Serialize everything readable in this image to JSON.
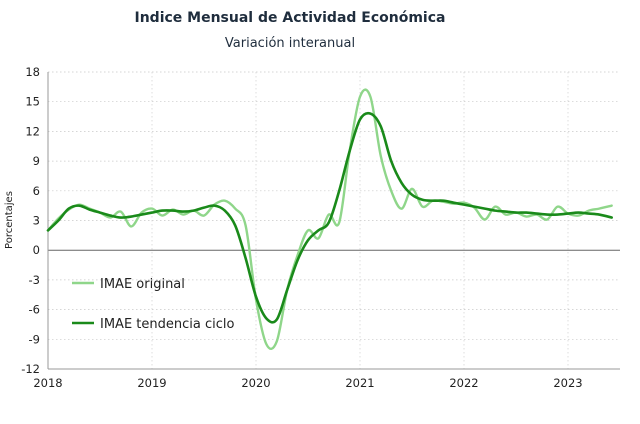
{
  "chart_data": {
    "type": "line",
    "title": "Indice Mensual de  Actividad Económica",
    "subtitle": "Variación interanual",
    "ylabel": "Porcentajes",
    "xlabel": "",
    "ylim": [
      -12,
      18
    ],
    "yticks": [
      18,
      15,
      12,
      9,
      6,
      3,
      0,
      -3,
      -6,
      -9,
      -12
    ],
    "xlim": [
      2018,
      2023.5
    ],
    "xticks": [
      2018,
      2019,
      2020,
      2021,
      2022,
      2023
    ],
    "grid": true,
    "legend": "bottom-left",
    "series": [
      {
        "name": "IMAE original",
        "color": "#8fd68a",
        "x": [
          2018.0,
          2018.1,
          2018.2,
          2018.3,
          2018.4,
          2018.5,
          2018.6,
          2018.7,
          2018.8,
          2018.9,
          2019.0,
          2019.1,
          2019.2,
          2019.3,
          2019.4,
          2019.5,
          2019.6,
          2019.7,
          2019.8,
          2019.9,
          2020.0,
          2020.1,
          2020.2,
          2020.3,
          2020.4,
          2020.5,
          2020.6,
          2020.7,
          2020.8,
          2020.9,
          2021.0,
          2021.1,
          2021.2,
          2021.3,
          2021.4,
          2021.5,
          2021.6,
          2021.7,
          2021.8,
          2021.9,
          2022.0,
          2022.1,
          2022.2,
          2022.3,
          2022.4,
          2022.5,
          2022.6,
          2022.7,
          2022.8,
          2022.9,
          2023.0,
          2023.1,
          2023.2,
          2023.3,
          2023.42
        ],
        "values": [
          2.0,
          3.2,
          4.1,
          4.6,
          4.2,
          3.8,
          3.3,
          3.9,
          2.4,
          3.8,
          4.2,
          3.5,
          4.1,
          3.6,
          4.0,
          3.5,
          4.6,
          5.0,
          4.2,
          2.5,
          -5.0,
          -9.5,
          -9.2,
          -4.0,
          -0.5,
          2.0,
          1.2,
          3.6,
          2.8,
          10.0,
          15.5,
          15.5,
          9.5,
          6.0,
          4.2,
          6.2,
          4.4,
          5.0,
          4.9,
          4.7,
          4.8,
          4.3,
          3.1,
          4.4,
          3.6,
          3.8,
          3.4,
          3.6,
          3.1,
          4.4,
          3.7,
          3.5,
          4.0,
          4.2,
          4.5
        ]
      },
      {
        "name": "IMAE tendencia ciclo",
        "color": "#1a8a1a",
        "x": [
          2018.0,
          2018.1,
          2018.2,
          2018.3,
          2018.4,
          2018.5,
          2018.6,
          2018.7,
          2018.8,
          2018.9,
          2019.0,
          2019.1,
          2019.2,
          2019.3,
          2019.4,
          2019.5,
          2019.6,
          2019.7,
          2019.8,
          2019.9,
          2020.0,
          2020.1,
          2020.2,
          2020.3,
          2020.4,
          2020.5,
          2020.6,
          2020.7,
          2020.8,
          2020.9,
          2021.0,
          2021.1,
          2021.2,
          2021.3,
          2021.4,
          2021.5,
          2021.6,
          2021.7,
          2021.8,
          2021.9,
          2022.0,
          2022.1,
          2022.2,
          2022.3,
          2022.4,
          2022.5,
          2022.6,
          2022.7,
          2022.8,
          2022.9,
          2023.0,
          2023.1,
          2023.2,
          2023.3,
          2023.42
        ],
        "values": [
          2.0,
          3.0,
          4.2,
          4.5,
          4.1,
          3.8,
          3.5,
          3.3,
          3.4,
          3.6,
          3.8,
          4.0,
          4.0,
          3.9,
          4.0,
          4.3,
          4.5,
          4.0,
          2.5,
          -0.8,
          -4.7,
          -6.9,
          -7.0,
          -4.0,
          -1.0,
          1.0,
          2.0,
          2.8,
          6.0,
          10.0,
          13.2,
          13.8,
          12.5,
          9.0,
          6.8,
          5.6,
          5.1,
          5.0,
          5.0,
          4.8,
          4.6,
          4.4,
          4.2,
          4.0,
          3.9,
          3.8,
          3.8,
          3.7,
          3.6,
          3.6,
          3.7,
          3.8,
          3.7,
          3.6,
          3.3
        ]
      }
    ]
  }
}
